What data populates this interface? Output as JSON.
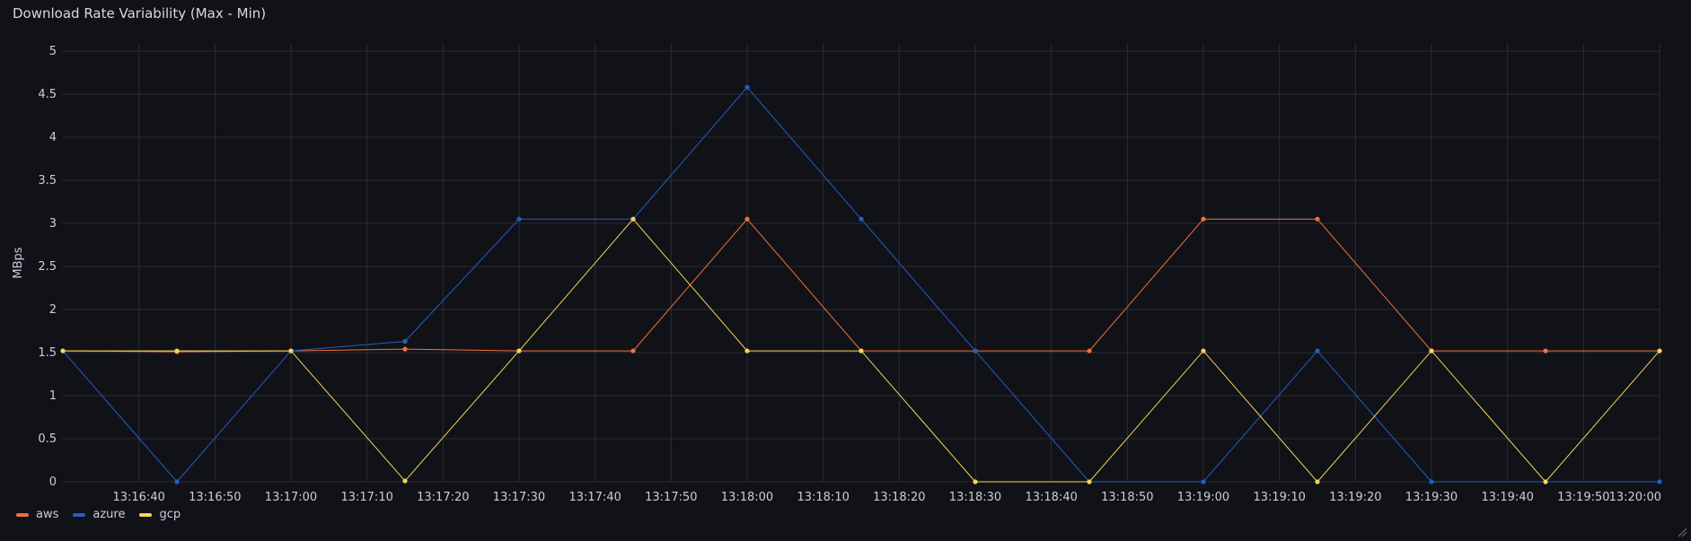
{
  "panel": {
    "title": "Download Rate Variability (Max - Min)"
  },
  "colors": {
    "background": "#111217",
    "grid": "#2a2c33",
    "text": "#ccccdc",
    "aws": "#f2703e",
    "azure": "#1f60c4",
    "gcp": "#f7d45d"
  },
  "chart_data": {
    "type": "line",
    "ylabel": "MBps",
    "xlabel": "",
    "ylim": [
      0,
      5
    ],
    "y_ticks": [
      "0",
      "0.5",
      "1",
      "1.5",
      "2",
      "2.5",
      "3",
      "3.5",
      "4",
      "4.5",
      "5"
    ],
    "x_tick_labels": [
      "13:16:40",
      "13:16:50",
      "13:17:00",
      "13:17:10",
      "13:17:20",
      "13:17:30",
      "13:17:40",
      "13:17:50",
      "13:18:00",
      "13:18:10",
      "13:18:20",
      "13:18:30",
      "13:18:40",
      "13:18:50",
      "13:19:00",
      "13:19:10",
      "13:19:20",
      "13:19:30",
      "13:19:40",
      "13:19:50",
      "13:20:00"
    ],
    "x": [
      "13:16:30",
      "13:16:45",
      "13:17:00",
      "13:17:15",
      "13:17:30",
      "13:17:45",
      "13:18:00",
      "13:18:15",
      "13:18:30",
      "13:18:45",
      "13:19:00",
      "13:19:15",
      "13:19:30",
      "13:19:45",
      "13:20:00"
    ],
    "xlim": [
      "13:16:30",
      "13:20:00"
    ],
    "grid": true,
    "legend_position": "bottom-left",
    "series": [
      {
        "name": "aws",
        "values": [
          1.52,
          1.51,
          1.52,
          1.54,
          1.52,
          1.52,
          3.05,
          1.52,
          1.52,
          1.52,
          3.05,
          3.05,
          1.52,
          1.52,
          1.52
        ]
      },
      {
        "name": "azure",
        "values": [
          1.52,
          0,
          1.52,
          1.63,
          3.05,
          3.05,
          4.58,
          3.05,
          1.52,
          0,
          0,
          1.52,
          0,
          0,
          0
        ]
      },
      {
        "name": "gcp",
        "values": [
          1.52,
          1.52,
          1.52,
          0.01,
          1.52,
          3.05,
          1.52,
          1.52,
          0,
          0,
          1.52,
          0,
          1.52,
          0,
          1.52
        ]
      }
    ]
  }
}
